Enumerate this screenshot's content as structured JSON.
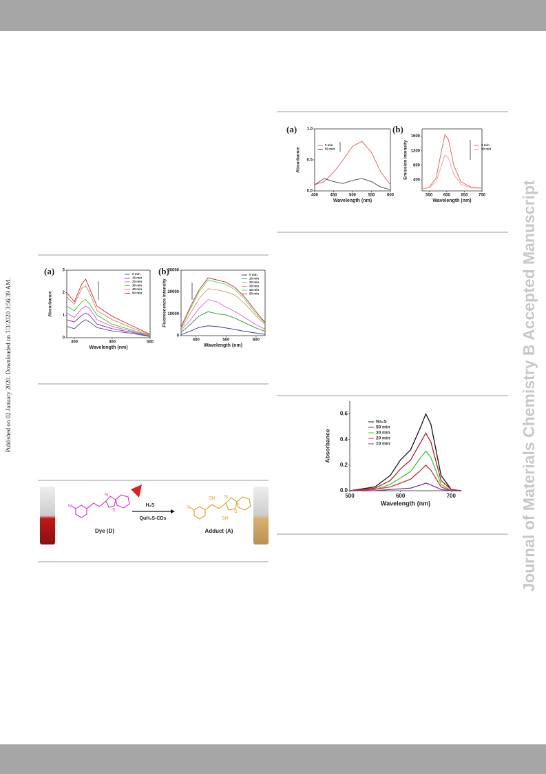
{
  "side_note": "Published on 02 January 2020. Downloaded on 1/3/2020 3:56:39 AM.",
  "watermark": "Journal of Materials Chemistry B Accepted Manuscript",
  "figures": [
    {
      "panels": [
        {
          "label": "(a)",
          "chart": {
            "type": "line",
            "x_label": "Wavelength (nm)",
            "y_label": "Absorbance",
            "xlim": [
              400,
              600
            ],
            "xticks": [
              400,
              450,
              500,
              550,
              600
            ],
            "ylim": [
              0,
              1.0
            ],
            "yticks": [
              {
                "value": 0,
                "label": "0.0"
              },
              {
                "value": 0.5,
                "label": "0.5"
              },
              {
                "value": 1.0,
                "label": "1.0"
              }
            ],
            "x": [
              400,
              425,
              450,
              475,
              500,
              525,
              550,
              575,
              600
            ],
            "series": [
              {
                "name": "0 min",
                "color": "#e06a6a",
                "values": [
                  0.1,
                  0.15,
                  0.3,
                  0.5,
                  0.72,
                  0.8,
                  0.62,
                  0.3,
                  0.1
                ]
              },
              {
                "name": "50 min",
                "color": "#555555",
                "values": [
                  0.1,
                  0.2,
                  0.15,
                  0.12,
                  0.17,
                  0.2,
                  0.15,
                  0.06,
                  0.02
                ]
              }
            ]
          }
        },
        {
          "label": "(b)",
          "chart": {
            "type": "line",
            "x_label": "Wavelength (nm)",
            "y_label": "Emission Intensity",
            "xlim": [
              530,
              700
            ],
            "xticks": [
              550,
              600,
              650,
              700
            ],
            "ylim": [
              100,
              1800
            ],
            "yticks": [
              400,
              800,
              1200,
              1600
            ],
            "x": [
              530,
              550,
              570,
              585,
              595,
              605,
              620,
              640,
              670,
              700
            ],
            "series": [
              {
                "name": "0 min",
                "color": "#e06a6a",
                "values": [
                  150,
                  200,
                  450,
                  1200,
                  1640,
                  1500,
                  800,
                  350,
                  200,
                  180
                ]
              },
              {
                "name": "50 min",
                "color": "#f0a8a0",
                "values": [
                  150,
                  190,
                  350,
                  800,
                  1080,
                  1000,
                  550,
                  280,
                  180,
                  170
                ]
              }
            ]
          }
        }
      ]
    },
    {
      "panels": [
        {
          "label": "(a)",
          "chart": {
            "type": "line",
            "x_label": "Wavelength (nm)",
            "y_label": "Absorbance",
            "xlim": [
              280,
              500
            ],
            "xticks": [
              300,
              400,
              500
            ],
            "ylim": [
              0,
              3
            ],
            "yticks": [
              0,
              1,
              2,
              3
            ],
            "x": [
              280,
              300,
              320,
              330,
              340,
              360,
              400,
              450,
              500
            ],
            "series": [
              {
                "name": "0 min",
                "color": "#5a5aa0",
                "values": [
                  0.5,
                  0.4,
                  0.7,
                  0.8,
                  0.7,
                  0.45,
                  0.3,
                  0.2,
                  0.05
                ]
              },
              {
                "name": "10 min",
                "color": "#8a3ab0",
                "values": [
                  0.8,
                  0.7,
                  1.0,
                  1.1,
                  1.0,
                  0.6,
                  0.4,
                  0.25,
                  0.07
                ]
              },
              {
                "name": "20 min",
                "color": "#e060e0",
                "values": [
                  1.1,
                  0.9,
                  1.3,
                  1.4,
                  1.3,
                  0.8,
                  0.5,
                  0.3,
                  0.08
                ]
              },
              {
                "name": "30 min",
                "color": "#3ad03a",
                "values": [
                  1.4,
                  1.2,
                  1.6,
                  1.7,
                  1.5,
                  1.0,
                  0.6,
                  0.35,
                  0.1
                ]
              },
              {
                "name": "40 min",
                "color": "#e08a5a",
                "values": [
                  1.8,
                  1.5,
                  2.2,
                  2.3,
                  2.0,
                  1.2,
                  0.8,
                  0.45,
                  0.12
                ]
              },
              {
                "name": "50 min",
                "color": "#c04040",
                "values": [
                  2.0,
                  1.6,
                  2.4,
                  2.6,
                  2.2,
                  1.4,
                  0.95,
                  0.55,
                  0.15
                ]
              }
            ]
          }
        },
        {
          "label": "(b)",
          "chart": {
            "type": "line",
            "x_label": "Wavelength (nm)",
            "y_label": "Fluorescence Intensity",
            "xlim": [
              350,
              630
            ],
            "xticks": [
              400,
              500,
              600
            ],
            "ylim": [
              0,
              30000
            ],
            "yticks": [
              0,
              10000,
              20000,
              30000
            ],
            "x": [
              350,
              380,
              410,
              440,
              470,
              500,
              530,
              560,
              600,
              630
            ],
            "series": [
              {
                "name": "0 min",
                "color": "#3a3aa0",
                "values": [
                  500,
                  2000,
                  3800,
                  4500,
                  4200,
                  3500,
                  2800,
                  2000,
                  1200,
                  600
                ]
              },
              {
                "name": "10 min",
                "color": "#3a9a3a",
                "values": [
                  1500,
                  5000,
                  9000,
                  11000,
                  10000,
                  9500,
                  8000,
                  6000,
                  3500,
                  2000
                ]
              },
              {
                "name": "20 min",
                "color": "#e070e0",
                "values": [
                  2500,
                  7000,
                  12500,
                  16500,
                  15500,
                  13000,
                  11000,
                  8500,
                  5000,
                  3000
                ]
              },
              {
                "name": "30 min",
                "color": "#e09a7a",
                "values": [
                  3000,
                  10000,
                  17000,
                  21500,
                  21000,
                  20000,
                  18500,
                  15000,
                  9000,
                  5000
                ]
              },
              {
                "name": "40 min",
                "color": "#60e070",
                "values": [
                  3500,
                  12000,
                  20000,
                  25500,
                  24500,
                  23500,
                  21000,
                  17000,
                  10000,
                  5500
                ]
              },
              {
                "name": "50 min",
                "color": "#c04040",
                "values": [
                  4000,
                  13000,
                  21000,
                  26500,
                  25500,
                  24500,
                  22000,
                  18000,
                  11000,
                  6000
                ]
              }
            ]
          }
        }
      ]
    },
    {
      "scheme": {
        "reagent": "H₂S",
        "catalyst": "QuH₂S-CDs",
        "dye_label": "Dye (D)",
        "product_label": "Adduct (A)",
        "atoms": [
          "N",
          "N",
          "S",
          "SH",
          "SH",
          "N",
          "N",
          "S"
        ]
      }
    },
    {
      "panels": [
        {
          "chart": {
            "type": "line",
            "x_label": "Wavelength (nm)",
            "y_label": "Absorbance",
            "xlim": [
              500,
              720
            ],
            "xticks": [
              500,
              600,
              700
            ],
            "ylim": [
              0,
              0.7
            ],
            "yticks": [
              {
                "value": 0,
                "label": "0.0"
              },
              {
                "value": 0.2,
                "label": "0.2"
              },
              {
                "value": 0.4,
                "label": "0.4"
              },
              {
                "value": 0.6,
                "label": "0.6"
              }
            ],
            "x": [
              500,
              550,
              580,
              600,
              620,
              640,
              650,
              660,
              680,
              700,
              720
            ],
            "series": [
              {
                "name": "Na₂S",
                "color": "#111111",
                "values": [
                  0,
                  0.03,
                  0.12,
                  0.24,
                  0.32,
                  0.5,
                  0.6,
                  0.52,
                  0.12,
                  0.01,
                  0
                ]
              },
              {
                "name": "50 min",
                "color": "#b02020",
                "values": [
                  0,
                  0.02,
                  0.08,
                  0.17,
                  0.24,
                  0.38,
                  0.45,
                  0.38,
                  0.08,
                  0.01,
                  0
                ]
              },
              {
                "name": "30 min",
                "color": "#30d030",
                "values": [
                  0,
                  0.01,
                  0.05,
                  0.1,
                  0.15,
                  0.26,
                  0.31,
                  0.26,
                  0.05,
                  0,
                  0
                ]
              },
              {
                "name": "20 min",
                "color": "#d03030",
                "values": [
                  0,
                  0.01,
                  0.03,
                  0.06,
                  0.09,
                  0.16,
                  0.2,
                  0.16,
                  0.03,
                  0,
                  0
                ]
              },
              {
                "name": "10 min",
                "color": "#8030a0",
                "values": [
                  0,
                  0,
                  0.01,
                  0.015,
                  0.02,
                  0.045,
                  0.06,
                  0.045,
                  0.01,
                  0,
                  0
                ]
              }
            ]
          }
        }
      ]
    }
  ]
}
